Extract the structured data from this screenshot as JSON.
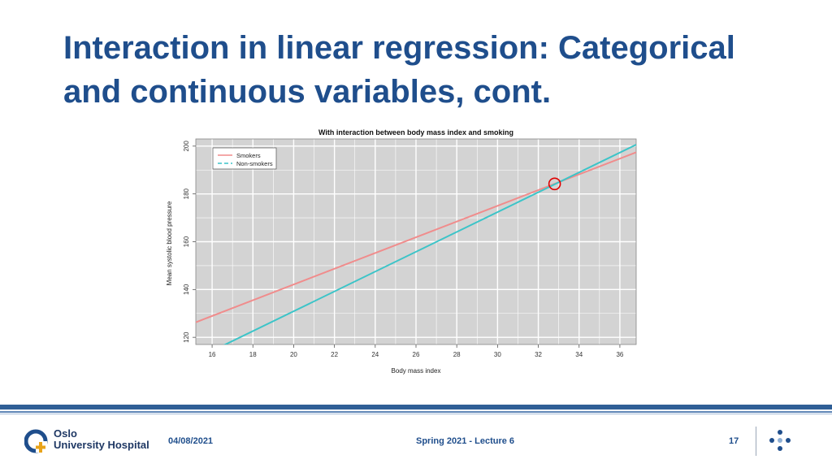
{
  "slide": {
    "title_line1": "Interaction in linear regression: Categorical",
    "title_line2": "and continuous variables, cont."
  },
  "footer": {
    "logo_line1": "Oslo",
    "logo_line2": "University Hospital",
    "date": "04/08/2021",
    "center_text": "Spring 2021 - Lecture 6",
    "page_number": "17"
  },
  "colors": {
    "title": "#1f4e8c",
    "smokers": "#f08c8c",
    "non_smokers": "#3cc4c8",
    "plot_background": "#d3d3d3",
    "highlight_circle": "#e00000"
  },
  "chart_data": {
    "type": "line",
    "title": "With interaction between body mass index and smoking",
    "xlabel": "Body mass index",
    "ylabel": "Mean systolic blood pressure",
    "xlim": [
      15.2,
      36.8
    ],
    "ylim": [
      117,
      203
    ],
    "xticks": [
      16,
      18,
      20,
      22,
      24,
      26,
      28,
      30,
      32,
      34,
      36
    ],
    "yticks": [
      120,
      140,
      160,
      180,
      200
    ],
    "grid": true,
    "legend": "top-left",
    "series": [
      {
        "name": "Smokers",
        "x": [
          15.2,
          36.8
        ],
        "y": [
          126.3,
          197.4
        ],
        "color": "#f08c8c",
        "dash": "solid"
      },
      {
        "name": "Non-smokers",
        "x": [
          15.2,
          36.8
        ],
        "y": [
          111.0,
          200.6
        ],
        "color": "#3cc4c8",
        "dash": "dashed-in-legend"
      }
    ],
    "annotations": [
      {
        "type": "circle",
        "x": 32.8,
        "y": 184.2,
        "color": "#e00000"
      }
    ]
  }
}
